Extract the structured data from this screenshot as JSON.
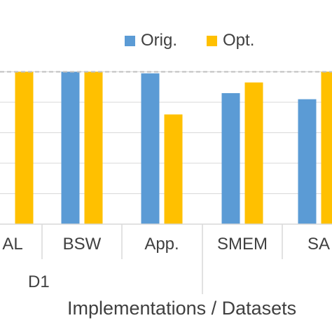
{
  "chart_data": {
    "type": "bar",
    "categories": [
      "AL",
      "BSW",
      "App.",
      "SMEM",
      "SA"
    ],
    "series": [
      {
        "name": "Orig.",
        "color": "#5B9BD5",
        "values": [
          null,
          1.0,
          0.99,
          0.86,
          0.82
        ]
      },
      {
        "name": "Opt.",
        "color": "#FFC000",
        "values": [
          1.0,
          1.0,
          0.72,
          0.93,
          1.0
        ]
      }
    ],
    "reference_line": {
      "value": 1.0,
      "style": "dashed",
      "color": "#BFBFBF"
    },
    "group_label": "D1",
    "xlabel": "Implementations / Datasets",
    "ylim": [
      0,
      1.2
    ],
    "grid": true,
    "legend_position": "top"
  }
}
